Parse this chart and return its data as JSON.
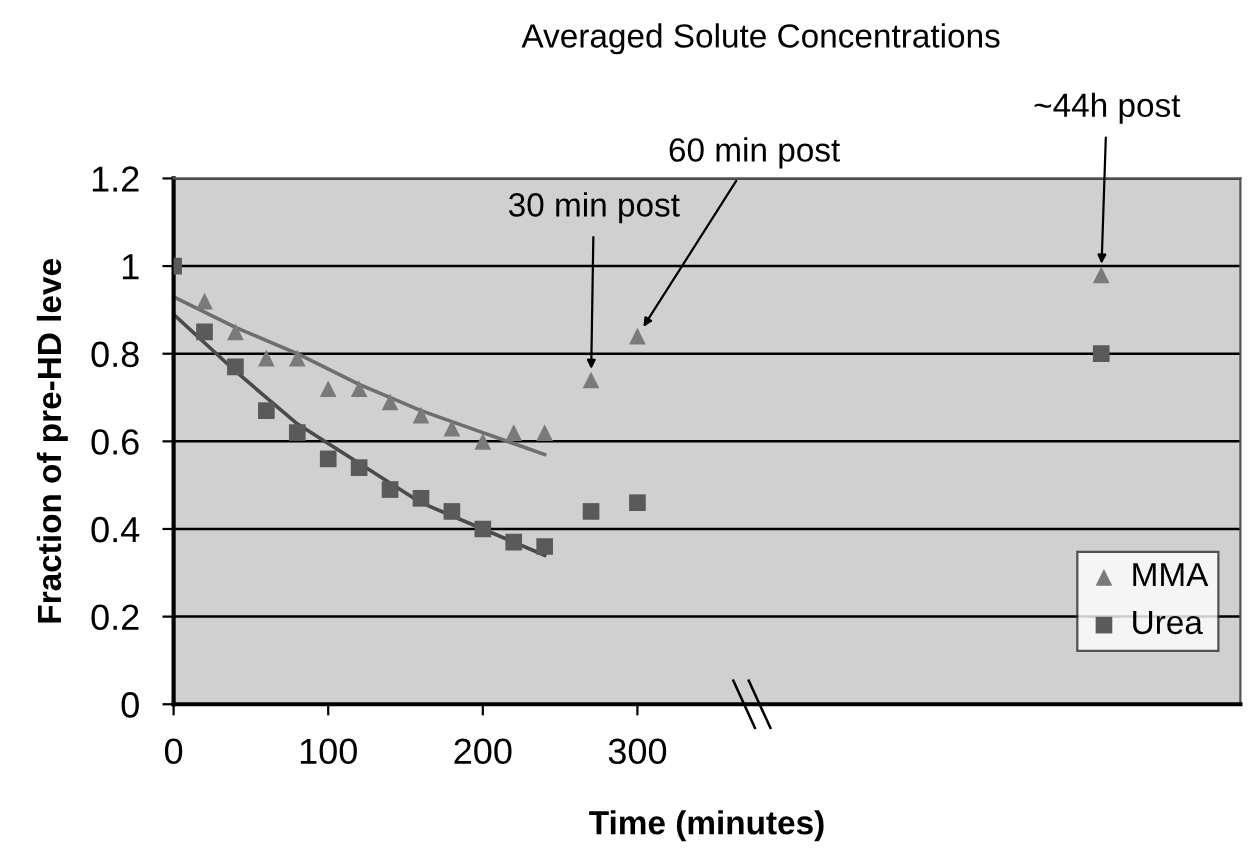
{
  "chart_data": {
    "type": "scatter",
    "title": "Averaged Solute Concentrations",
    "xlabel": "Time (minutes)",
    "ylabel": "Fraction of pre-HD leve",
    "xlim": [
      0,
      690
    ],
    "xticks": [
      0,
      100,
      200,
      300
    ],
    "ylim": [
      0,
      1.2
    ],
    "yticks": [
      0,
      0.2,
      0.4,
      0.6,
      0.8,
      1,
      1.2
    ],
    "grid": "y",
    "legend": "bottom right",
    "series": [
      {
        "name": "MMA",
        "marker": "triangle",
        "color": "#7a7a7a",
        "x": [
          20,
          40,
          60,
          80,
          100,
          120,
          140,
          160,
          180,
          200,
          220,
          240,
          270,
          300,
          600
        ],
        "values": [
          0.92,
          0.85,
          0.79,
          0.79,
          0.72,
          0.72,
          0.69,
          0.66,
          0.63,
          0.6,
          0.62,
          0.62,
          0.74,
          0.84,
          0.98
        ]
      },
      {
        "name": "Urea",
        "marker": "square",
        "color": "#5a5a5a",
        "x": [
          0,
          20,
          40,
          60,
          80,
          100,
          120,
          140,
          160,
          180,
          200,
          220,
          240,
          270,
          300,
          600
        ],
        "values": [
          1.0,
          0.85,
          0.77,
          0.67,
          0.62,
          0.56,
          0.54,
          0.49,
          0.47,
          0.44,
          0.4,
          0.37,
          0.36,
          0.44,
          0.46,
          0.8
        ]
      },
      {
        "type": "line",
        "color": "#6e6e6e",
        "x": [
          0,
          40,
          80,
          120,
          160,
          200,
          240
        ],
        "values": [
          0.93,
          0.86,
          0.8,
          0.73,
          0.67,
          0.62,
          0.57
        ]
      },
      {
        "type": "line",
        "color": "#4a4a4a",
        "x": [
          0,
          40,
          80,
          120,
          160,
          200,
          240
        ],
        "values": [
          0.89,
          0.76,
          0.64,
          0.55,
          0.46,
          0.4,
          0.34
        ]
      }
    ],
    "annotations": [
      {
        "text": "30 min post",
        "x": 270,
        "y": 0.74
      },
      {
        "text": "60 min post",
        "x": 300,
        "y": 0.84
      },
      {
        "text": "~44h post",
        "x": 600,
        "y": 0.98
      }
    ]
  }
}
